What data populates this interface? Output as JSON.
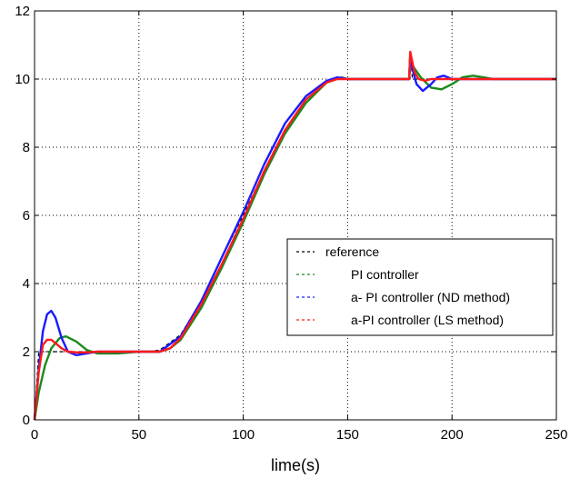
{
  "chart_data": {
    "type": "line",
    "xlabel": "lime(s)",
    "ylabel": "",
    "xlim": [
      0,
      250
    ],
    "ylim": [
      0,
      12
    ],
    "xticks": [
      0,
      50,
      100,
      150,
      200,
      250
    ],
    "yticks": [
      0,
      2,
      4,
      6,
      8,
      10,
      12
    ],
    "ytick_labels": [
      "0",
      "2",
      "4",
      "6",
      "8",
      "10",
      "12"
    ],
    "grid": true,
    "legend_position": "center-right",
    "series": [
      {
        "name": "reference",
        "color": "#000000",
        "dash": "dashed",
        "x": [
          0,
          2,
          4,
          55,
          60,
          70,
          80,
          90,
          100,
          110,
          120,
          130,
          140,
          145,
          150,
          179.9,
          180,
          181,
          250
        ],
        "y": [
          0,
          2,
          2,
          2,
          2.05,
          2.5,
          3.5,
          4.8,
          6,
          7.3,
          8.5,
          9.4,
          9.9,
          10,
          10,
          10,
          10.8,
          10,
          10
        ]
      },
      {
        "name": "PI controller",
        "color": "#1a8a1a",
        "dash": "solid",
        "x": [
          0,
          2,
          5,
          8,
          12,
          15,
          20,
          25,
          30,
          40,
          50,
          60,
          65,
          70,
          80,
          90,
          100,
          110,
          120,
          130,
          140,
          147,
          150,
          160,
          179.5,
          180,
          181,
          185,
          190,
          195,
          200,
          205,
          210,
          215,
          220,
          250
        ],
        "y": [
          0,
          0.8,
          1.6,
          2.1,
          2.4,
          2.45,
          2.3,
          2.05,
          1.95,
          1.95,
          2,
          2,
          2.1,
          2.35,
          3.3,
          4.5,
          5.8,
          7.2,
          8.4,
          9.3,
          9.9,
          10.05,
          10,
          10,
          10,
          10.75,
          10.4,
          10.05,
          9.75,
          9.7,
          9.85,
          10.05,
          10.1,
          10.05,
          10,
          10
        ]
      },
      {
        "name": "a- PI controller (ND method)",
        "color": "#1a1aff",
        "dash": "solid",
        "x": [
          0,
          2,
          4,
          6,
          8,
          10,
          13,
          16,
          20,
          25,
          30,
          40,
          50,
          60,
          70,
          80,
          90,
          100,
          110,
          120,
          130,
          140,
          145,
          150,
          160,
          179.5,
          180,
          181,
          183,
          186,
          190,
          193,
          196,
          200,
          210,
          250
        ],
        "y": [
          0,
          1.5,
          2.6,
          3.1,
          3.2,
          3.0,
          2.4,
          2.0,
          1.9,
          1.95,
          2,
          2,
          2,
          2,
          2.45,
          3.5,
          4.8,
          6.1,
          7.5,
          8.7,
          9.5,
          9.95,
          10.05,
          10,
          10,
          10,
          10.75,
          10.3,
          9.85,
          9.65,
          9.85,
          10.05,
          10.1,
          10,
          10,
          10
        ]
      },
      {
        "name": "a-PI controller (LS method)",
        "color": "#ff1a1a",
        "dash": "solid",
        "x": [
          0,
          2,
          4,
          6,
          8,
          10,
          13,
          16,
          20,
          25,
          30,
          40,
          50,
          60,
          65,
          70,
          80,
          90,
          100,
          110,
          120,
          130,
          140,
          145,
          150,
          160,
          179.5,
          180,
          181,
          182,
          184,
          187,
          190,
          195,
          200,
          250
        ],
        "y": [
          0,
          1.4,
          2.2,
          2.35,
          2.35,
          2.25,
          2.1,
          2.0,
          1.98,
          1.98,
          2,
          2,
          2,
          2,
          2.1,
          2.4,
          3.4,
          4.6,
          5.9,
          7.3,
          8.5,
          9.4,
          9.9,
          10,
          10,
          10,
          10,
          10.8,
          10.5,
          10.2,
          10.0,
          9.95,
          10.0,
          10,
          10,
          10
        ]
      }
    ]
  }
}
